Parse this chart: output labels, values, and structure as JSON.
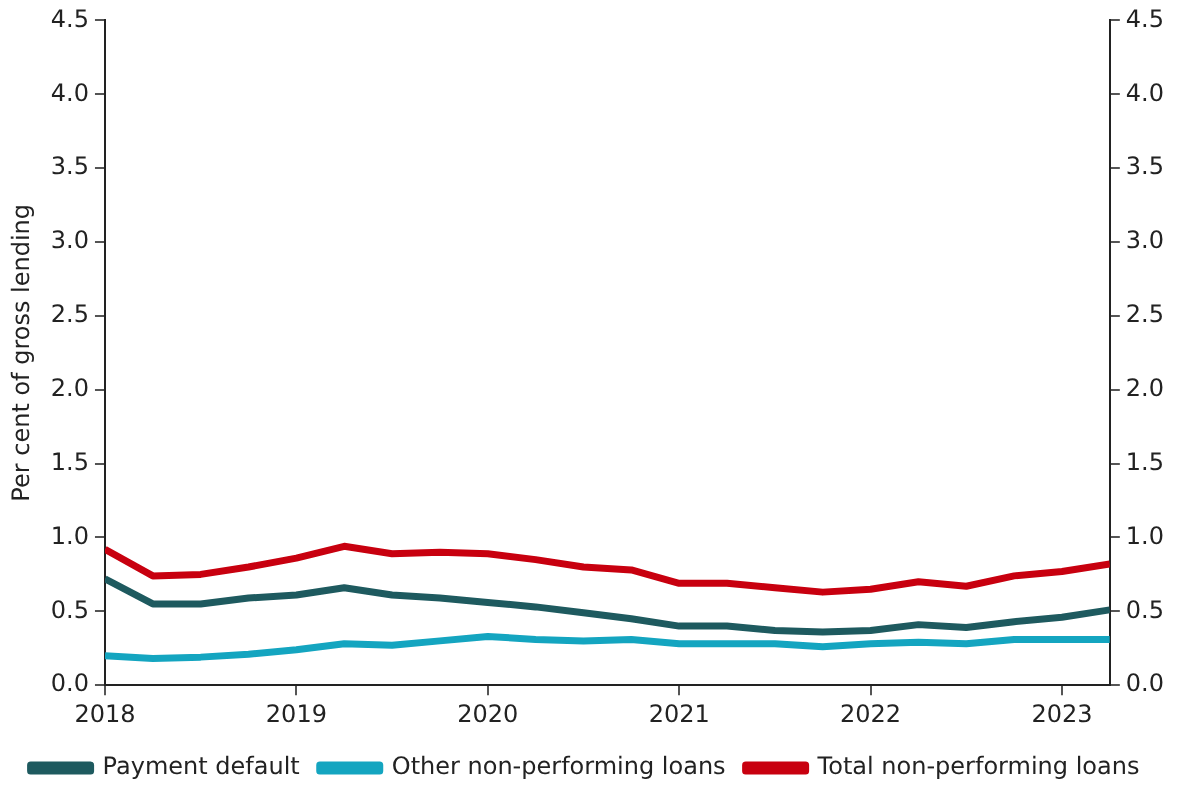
{
  "chart_data": {
    "type": "line",
    "ylabel": "Per cent of gross lending",
    "x": [
      2018,
      2018.25,
      2018.5,
      2018.75,
      2019,
      2019.25,
      2019.5,
      2019.75,
      2020,
      2020.25,
      2020.5,
      2020.75,
      2021,
      2021.25,
      2021.5,
      2021.75,
      2022,
      2022.25,
      2022.5,
      2022.75,
      2023,
      2023.25
    ],
    "series": [
      {
        "name": "Payment default",
        "color": "#1e5a5f",
        "values": [
          0.72,
          0.55,
          0.55,
          0.59,
          0.61,
          0.66,
          0.61,
          0.59,
          0.56,
          0.53,
          0.49,
          0.45,
          0.4,
          0.4,
          0.37,
          0.36,
          0.37,
          0.41,
          0.39,
          0.43,
          0.46,
          0.51
        ]
      },
      {
        "name": "Other non-performing loans",
        "color": "#14a5c0",
        "values": [
          0.2,
          0.18,
          0.19,
          0.21,
          0.24,
          0.28,
          0.27,
          0.3,
          0.33,
          0.31,
          0.3,
          0.31,
          0.28,
          0.28,
          0.28,
          0.26,
          0.28,
          0.29,
          0.28,
          0.31,
          0.31,
          0.31
        ]
      },
      {
        "name": "Total non-performing loans",
        "color": "#c8000f",
        "values": [
          0.92,
          0.74,
          0.75,
          0.8,
          0.86,
          0.94,
          0.89,
          0.9,
          0.89,
          0.85,
          0.8,
          0.78,
          0.69,
          0.69,
          0.66,
          0.63,
          0.65,
          0.7,
          0.67,
          0.74,
          0.77,
          0.82
        ]
      }
    ],
    "xlim": [
      2018,
      2023.25
    ],
    "xticks": [
      2018,
      2019,
      2020,
      2021,
      2022,
      2023
    ],
    "ylim": [
      0,
      4.5
    ],
    "yticks": [
      {
        "value": 0,
        "label": "0.0"
      },
      {
        "value": 0.5,
        "label": "0.5"
      },
      {
        "value": 1,
        "label": "1.0"
      },
      {
        "value": 1.5,
        "label": "1.5"
      },
      {
        "value": 2,
        "label": "2.0"
      },
      {
        "value": 2.5,
        "label": "2.5"
      },
      {
        "value": 3,
        "label": "3.0"
      },
      {
        "value": 3.5,
        "label": "3.5"
      },
      {
        "value": 4,
        "label": "4.0"
      },
      {
        "value": 4.5,
        "label": "4.5"
      }
    ],
    "y2lim": [
      0,
      4.5
    ],
    "y2ticks": [
      {
        "value": 0,
        "label": "0.0"
      },
      {
        "value": 0.5,
        "label": "0.5"
      },
      {
        "value": 1,
        "label": "1.0"
      },
      {
        "value": 1.5,
        "label": "1.5"
      },
      {
        "value": 2,
        "label": "2.0"
      },
      {
        "value": 2.5,
        "label": "2.5"
      },
      {
        "value": 3,
        "label": "3.0"
      },
      {
        "value": 3.5,
        "label": "3.5"
      },
      {
        "value": 4,
        "label": "4.0"
      },
      {
        "value": 4.5,
        "label": "4.5"
      }
    ],
    "grid": false,
    "legend": "bottom",
    "marker": "none",
    "line_style": "solid"
  }
}
